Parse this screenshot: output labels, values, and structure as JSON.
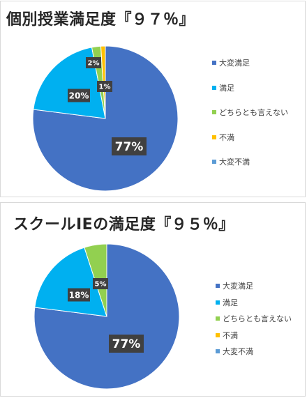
{
  "chart_data": [
    {
      "type": "pie",
      "title": "個別授業満足度『９７％』",
      "categories": [
        "大変満足",
        "満足",
        "どちらとも言えない",
        "不満",
        "大変不満"
      ],
      "values": [
        77,
        20,
        2,
        1,
        0
      ],
      "data_labels": [
        "77%",
        "20%",
        "2%",
        "1%",
        ""
      ],
      "colors": [
        "#4472c4",
        "#00b0f0",
        "#92d050",
        "#ffc000",
        "#5b9bd5"
      ],
      "legend": "right"
    },
    {
      "type": "pie",
      "title": "スクールIEの満足度『９５％』",
      "categories": [
        "大変満足",
        "満足",
        "どちらとも言えない",
        "不満",
        "大変不満"
      ],
      "values": [
        77,
        18,
        5,
        0,
        0
      ],
      "data_labels": [
        "77%",
        "18%",
        "5%",
        "",
        ""
      ],
      "colors": [
        "#4472c4",
        "#00b0f0",
        "#92d050",
        "#ffc000",
        "#5b9bd5"
      ],
      "legend": "right"
    }
  ]
}
